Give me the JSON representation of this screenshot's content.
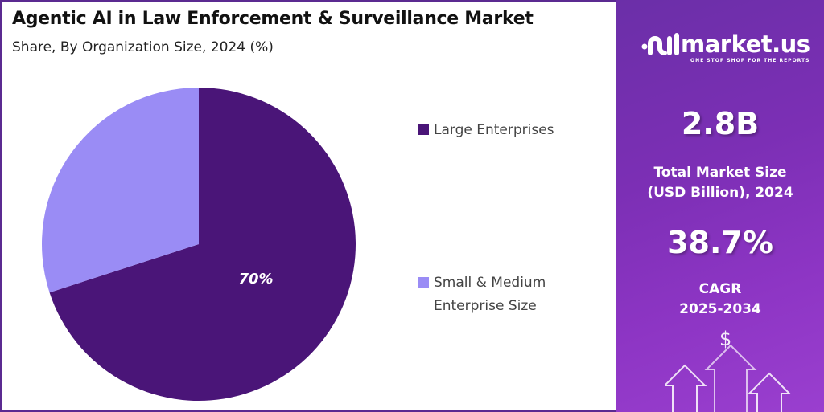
{
  "chart_data": {
    "type": "pie",
    "title": "Agentic AI in Law Enforcement & Surveillance Market",
    "subtitle": "Share, By Organization Size, 2024 (%)",
    "slices": [
      {
        "name": "Large Enterprises",
        "value": 70,
        "color": "#4a1578",
        "label": "70%"
      },
      {
        "name": "Small & Medium Enterprise Size",
        "value": 30,
        "color": "#9a8cf5",
        "label": ""
      }
    ],
    "legend_position": "right"
  },
  "legend": {
    "items": [
      {
        "line1": "Large Enterprises",
        "line2": ""
      },
      {
        "line1": "Small & Medium",
        "line2": "Enterprise Size"
      }
    ]
  },
  "sidebar": {
    "brand": "market.us",
    "tagline": "ONE STOP SHOP FOR THE REPORTS",
    "market_size": "2.8B",
    "market_size_label_1": "Total Market Size",
    "market_size_label_2": "(USD Billion), 2024",
    "cagr": "38.7%",
    "cagr_label_1": "CAGR",
    "cagr_label_2": "2025-2034",
    "dollar": "$"
  }
}
